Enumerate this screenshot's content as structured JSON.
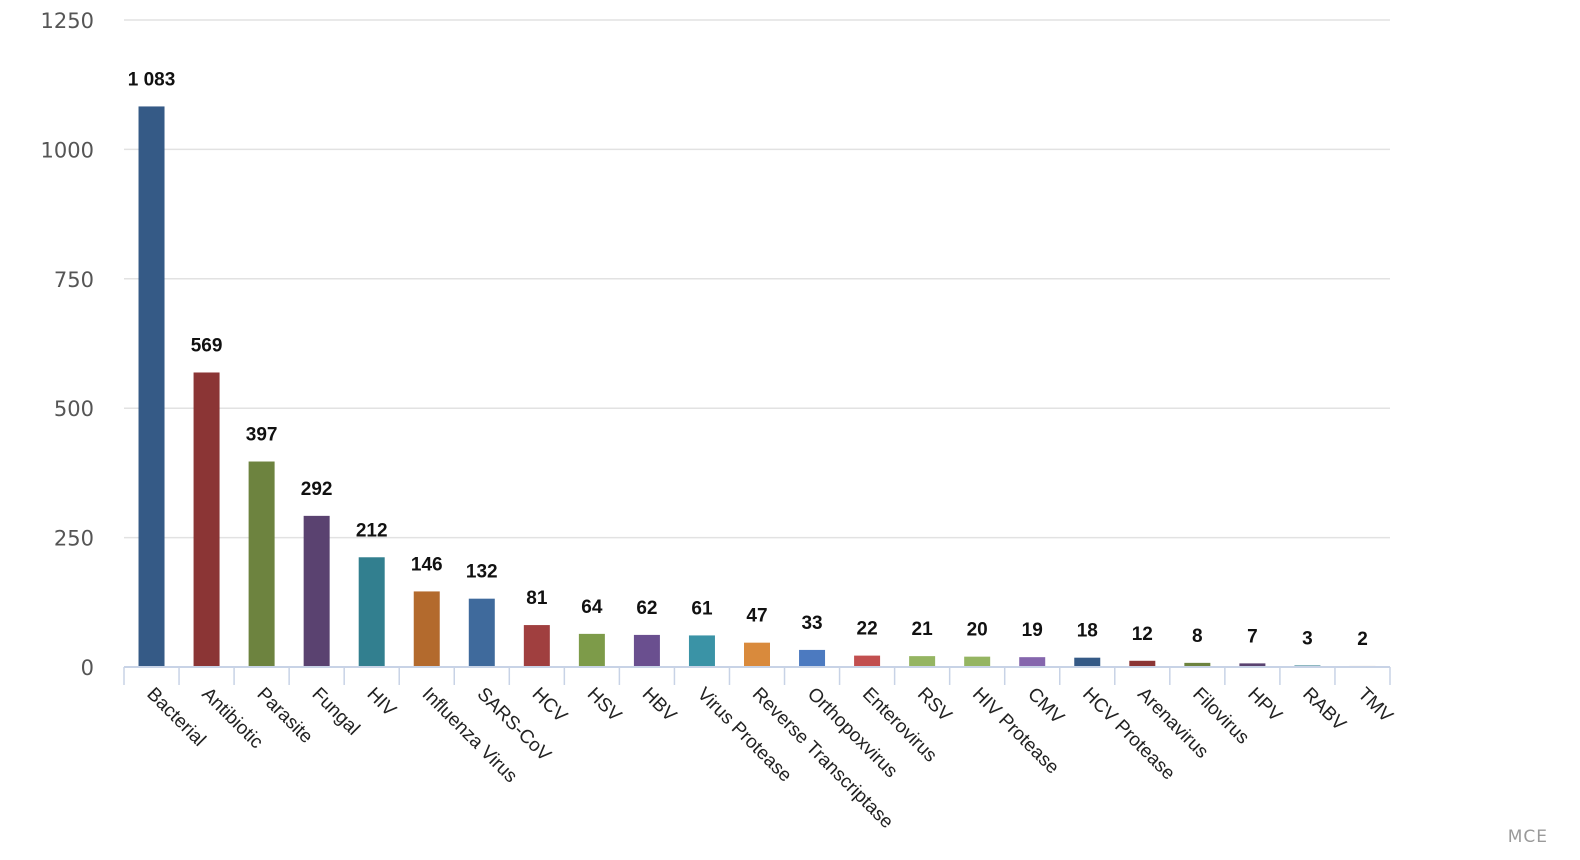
{
  "chart_data": {
    "type": "bar",
    "title": "",
    "xlabel": "",
    "ylabel": "",
    "ylim": [
      0,
      1250
    ],
    "yticks": [
      0,
      250,
      500,
      750,
      1000,
      1250
    ],
    "grid": true,
    "legend": "none",
    "categories": [
      "Bacterial",
      "Antibiotic",
      "Parasite",
      "Fungal",
      "HIV",
      "Influenza Virus",
      "SARS-CoV",
      "HCV",
      "HSV",
      "HBV",
      "Virus Protease",
      "Reverse Transcriptase",
      "Orthopoxvirus",
      "Enterovirus",
      "RSV",
      "HIV Protease",
      "CMV",
      "HCV Protease",
      "Arenavirus",
      "Filovirus",
      "HPV",
      "RABV",
      "TMV"
    ],
    "values": [
      1083,
      569,
      397,
      292,
      212,
      146,
      132,
      81,
      64,
      62,
      61,
      47,
      33,
      22,
      21,
      20,
      19,
      18,
      12,
      8,
      7,
      3,
      2
    ],
    "data_labels": [
      "1 083",
      "569",
      "397",
      "292",
      "212",
      "146",
      "132",
      "81",
      "64",
      "62",
      "61",
      "47",
      "33",
      "22",
      "21",
      "20",
      "19",
      "18",
      "12",
      "8",
      "7",
      "3",
      "2"
    ],
    "colors": [
      "#355a86",
      "#8b3535",
      "#6d833f",
      "#5a4270",
      "#327f8f",
      "#b36a2d",
      "#3f6a9c",
      "#a03f3f",
      "#7d9b49",
      "#6a4f8f",
      "#3a93a6",
      "#d98a3c",
      "#4c7ac0",
      "#c24f4f",
      "#95b562",
      "#95b562",
      "#8566ad",
      "#355a86",
      "#8b3535",
      "#6d833f",
      "#5a4270",
      "#327f8f",
      "#b36a2d"
    ]
  },
  "credit": "MCE"
}
